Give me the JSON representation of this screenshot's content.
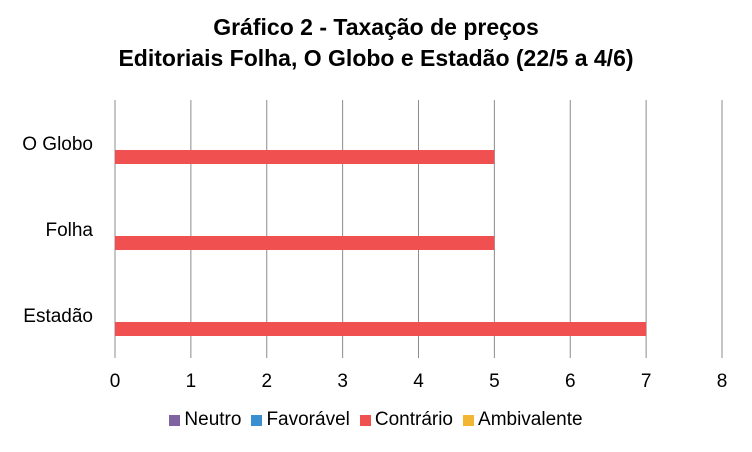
{
  "chart_data": {
    "type": "bar",
    "orientation": "horizontal",
    "title": "Gráfico 2 - Taxação de preços",
    "subtitle": "Editoriais Folha, O Globo e Estadão (22/5 a 4/6)",
    "categories": [
      "Estadão",
      "Folha",
      "O Globo"
    ],
    "series": [
      {
        "name": "Neutro",
        "color": "#8064a2",
        "values": [
          0,
          0,
          0
        ]
      },
      {
        "name": "Favorável",
        "color": "#3a8fd1",
        "values": [
          0,
          0,
          0
        ]
      },
      {
        "name": "Contrário",
        "color": "#f0504f",
        "values": [
          7,
          5,
          5
        ]
      },
      {
        "name": "Ambivalente",
        "color": "#f2b632",
        "values": [
          0,
          0,
          0
        ]
      }
    ],
    "xlim": [
      0,
      8
    ],
    "x_ticks": [
      "0",
      "1",
      "2",
      "3",
      "4",
      "5",
      "6",
      "7",
      "8"
    ],
    "xlabel": "",
    "ylabel": "",
    "grid": "vertical",
    "legend_position": "bottom"
  }
}
